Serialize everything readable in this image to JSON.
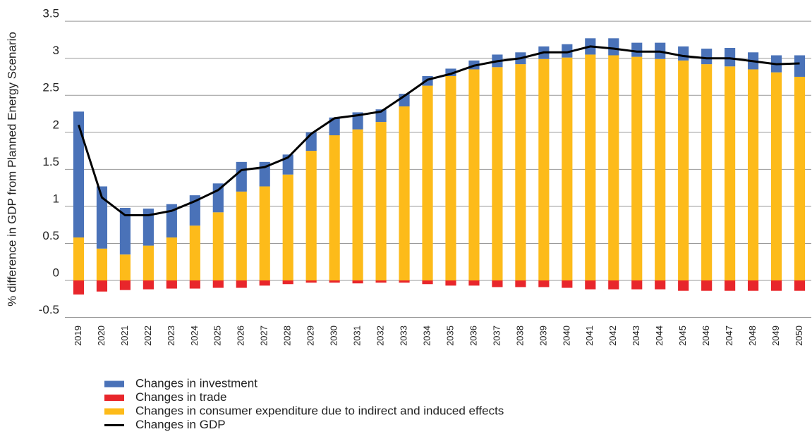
{
  "chart_data": {
    "type": "bar",
    "y_label": "% difference in GDP from Planned Energy Scenario",
    "categories": [
      "2019",
      "2020",
      "2021",
      "2022",
      "2023",
      "2024",
      "2025",
      "2026",
      "2027",
      "2028",
      "2029",
      "2030",
      "2031",
      "2032",
      "2033",
      "2034",
      "2035",
      "2036",
      "2037",
      "2038",
      "2039",
      "2040",
      "2041",
      "2042",
      "2043",
      "2044",
      "2045",
      "2046",
      "2047",
      "2048",
      "2049",
      "2050"
    ],
    "series": [
      {
        "name": "Changes in investment",
        "color": "#4a72b8",
        "type": "bar",
        "values": [
          1.7,
          0.84,
          0.63,
          0.5,
          0.45,
          0.41,
          0.39,
          0.4,
          0.33,
          0.27,
          0.25,
          0.24,
          0.23,
          0.17,
          0.17,
          0.13,
          0.1,
          0.12,
          0.17,
          0.16,
          0.17,
          0.18,
          0.22,
          0.23,
          0.19,
          0.22,
          0.19,
          0.21,
          0.25,
          0.23,
          0.23,
          0.29
        ]
      },
      {
        "name": "Changes in trade",
        "color": "#e8262b",
        "type": "bar",
        "values": [
          -0.19,
          -0.15,
          -0.13,
          -0.12,
          -0.11,
          -0.11,
          -0.1,
          -0.1,
          -0.07,
          -0.05,
          -0.03,
          -0.03,
          -0.04,
          -0.03,
          -0.03,
          -0.05,
          -0.07,
          -0.07,
          -0.09,
          -0.09,
          -0.09,
          -0.1,
          -0.12,
          -0.12,
          -0.12,
          -0.12,
          -0.14,
          -0.14,
          -0.14,
          -0.14,
          -0.14,
          -0.14
        ]
      },
      {
        "name": "Changes in consumer expenditure due to indirect and induced effects",
        "color": "#fdbb1a",
        "type": "bar",
        "values": [
          0.58,
          0.43,
          0.35,
          0.47,
          0.58,
          0.74,
          0.92,
          1.2,
          1.27,
          1.43,
          1.75,
          1.96,
          2.04,
          2.14,
          2.35,
          2.63,
          2.76,
          2.85,
          2.88,
          2.92,
          2.99,
          3.01,
          3.05,
          3.04,
          3.02,
          2.99,
          2.97,
          2.92,
          2.89,
          2.85,
          2.81,
          2.75
        ]
      },
      {
        "name": "Changes in GDP",
        "color": "#000000",
        "type": "line",
        "values": [
          2.1,
          1.12,
          0.88,
          0.88,
          0.94,
          1.07,
          1.22,
          1.49,
          1.53,
          1.66,
          1.98,
          2.19,
          2.23,
          2.28,
          2.49,
          2.71,
          2.79,
          2.9,
          2.96,
          3.0,
          3.08,
          3.08,
          3.16,
          3.13,
          3.09,
          3.09,
          3.03,
          3.0,
          3.0,
          2.96,
          2.92,
          2.93
        ]
      }
    ],
    "ylim": [
      -0.6,
      3.5
    ],
    "yticks": [
      -0.5,
      0,
      0.5,
      1,
      1.5,
      2,
      2.5,
      3,
      3.5
    ],
    "grid": true
  }
}
